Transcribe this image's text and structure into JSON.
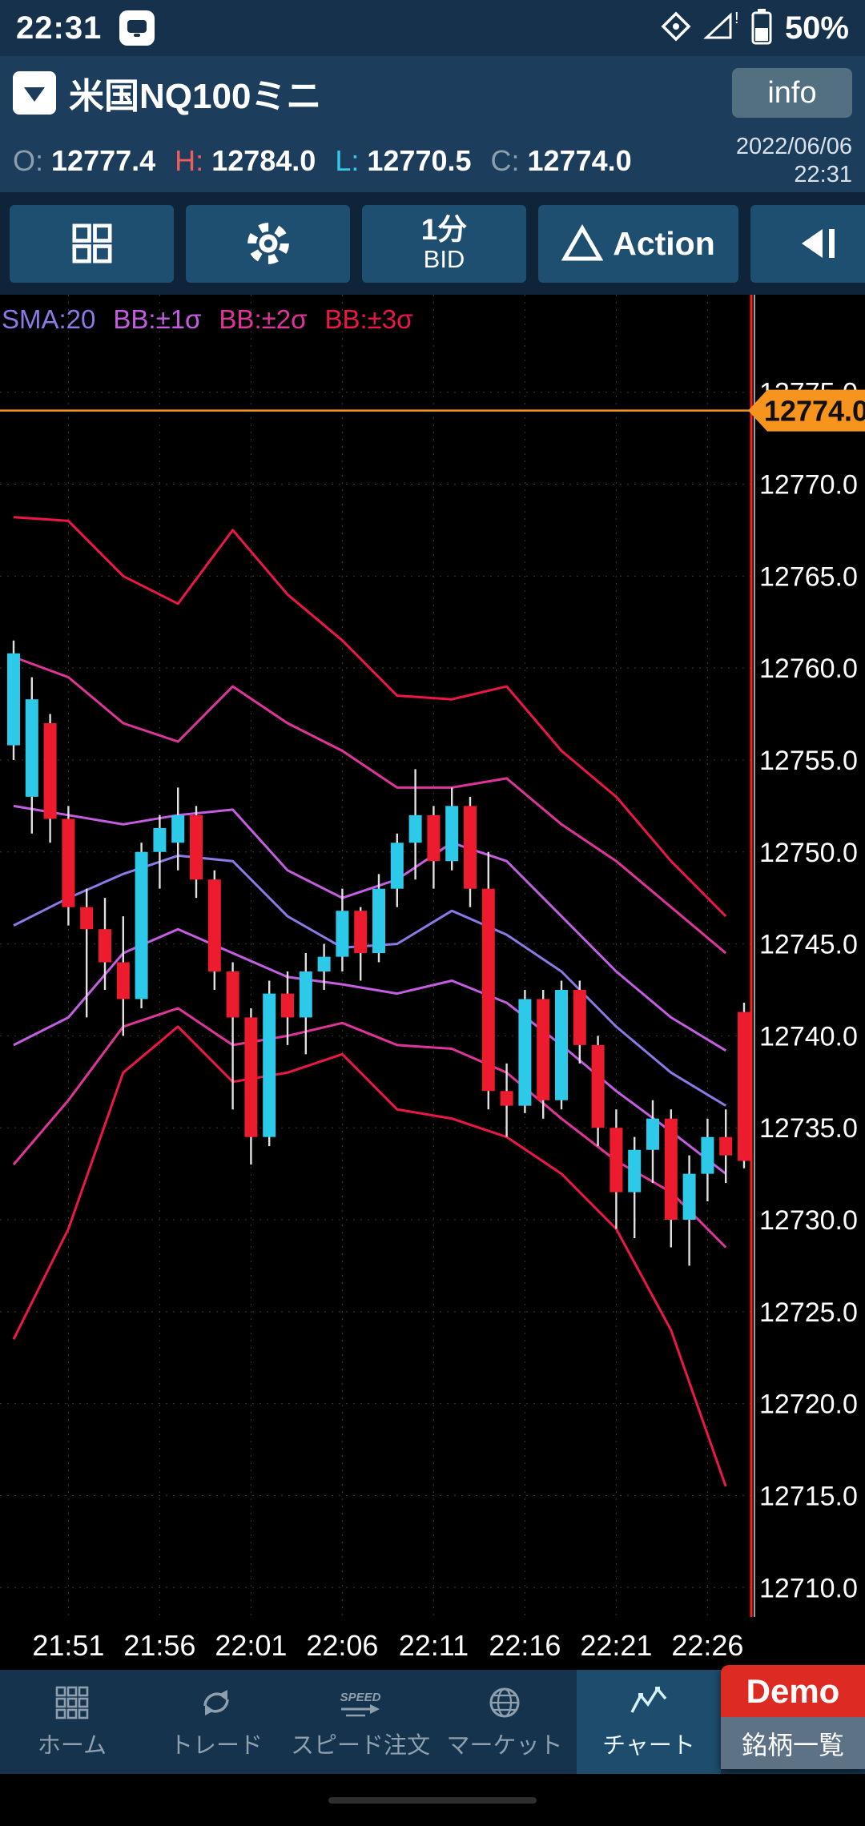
{
  "status_bar": {
    "time": "22:31",
    "battery": "50%"
  },
  "header": {
    "title": "米国NQ100ミニ",
    "info_label": "info"
  },
  "quote": {
    "o_label": "O:",
    "o": "12777.4",
    "h_label": "H:",
    "h": "12784.0",
    "l_label": "L:",
    "l": "12770.5",
    "c_label": "C:",
    "c": "12774.0",
    "date": "2022/06/06",
    "time": "22:31"
  },
  "toolbar": {
    "timeframe": "1分",
    "price_type": "BID",
    "action_label": "Action"
  },
  "legend": [
    {
      "label": "SMA:20",
      "color": "#8A7AE6"
    },
    {
      "label": "BB:±1σ",
      "color": "#C45DE2"
    },
    {
      "label": "BB:±2σ",
      "color": "#E0349B"
    },
    {
      "label": "BB:±3σ",
      "color": "#EC1747"
    }
  ],
  "colors": {
    "up": "#2CC9E9",
    "down": "#EC1C2E",
    "wick": "#E0E0E0",
    "sma": "#8A7AE6",
    "bb1": "#C45DE2",
    "bb2": "#E0349B",
    "bb3": "#EC1747",
    "price_line": "#F7941D",
    "time_line": "#FF2020",
    "grid": "#383838",
    "axis_text": "#FFFFFF"
  },
  "chart_data": {
    "type": "candlestick",
    "symbol": "米国NQ100ミニ",
    "interval": "1分",
    "price_side": "BID",
    "current_price": 12774.0,
    "y_range": [
      12708.4,
      12780.3
    ],
    "y_ticks": [
      12775,
      12770,
      12765,
      12760,
      12755,
      12750,
      12745,
      12740,
      12735,
      12730,
      12725,
      12720,
      12715,
      12710
    ],
    "x_ticks": [
      {
        "idx": 3,
        "label": "21:51"
      },
      {
        "idx": 8,
        "label": "21:56"
      },
      {
        "idx": 13,
        "label": "22:01"
      },
      {
        "idx": 18,
        "label": "22:06"
      },
      {
        "idx": 23,
        "label": "22:11"
      },
      {
        "idx": 28,
        "label": "22:16"
      },
      {
        "idx": 33,
        "label": "22:21"
      },
      {
        "idx": 38,
        "label": "22:26"
      }
    ],
    "start_time": "21:48",
    "candles": [
      [
        12755.8,
        12761.5,
        12755.0,
        12760.8
      ],
      [
        12753.0,
        12759.5,
        12751.0,
        12758.3
      ],
      [
        12757.0,
        12757.5,
        12750.5,
        12751.8
      ],
      [
        12751.8,
        12752.5,
        12746.0,
        12747.0
      ],
      [
        12747.0,
        12748.0,
        12741.0,
        12745.8
      ],
      [
        12745.8,
        12747.5,
        12742.5,
        12744.0
      ],
      [
        12744.0,
        12746.5,
        12740.0,
        12742.0
      ],
      [
        12742.0,
        12750.5,
        12741.5,
        12750.0
      ],
      [
        12750.0,
        12752.0,
        12748.0,
        12751.3
      ],
      [
        12750.5,
        12753.5,
        12749.0,
        12752.0
      ],
      [
        12752.0,
        12752.5,
        12747.5,
        12748.5
      ],
      [
        12748.5,
        12749.0,
        12742.5,
        12743.5
      ],
      [
        12743.5,
        12744.0,
        12736.0,
        12741.0
      ],
      [
        12741.0,
        12741.5,
        12733.0,
        12734.5
      ],
      [
        12734.5,
        12743.0,
        12734.0,
        12742.3
      ],
      [
        12742.3,
        12743.5,
        12739.5,
        12741.0
      ],
      [
        12741.0,
        12744.5,
        12739.0,
        12743.5
      ],
      [
        12743.5,
        12745.0,
        12742.5,
        12744.3
      ],
      [
        12744.3,
        12748.0,
        12743.5,
        12746.8
      ],
      [
        12746.8,
        12747.0,
        12743.0,
        12744.5
      ],
      [
        12744.5,
        12748.8,
        12744.0,
        12748.0
      ],
      [
        12748.0,
        12751.0,
        12747.0,
        12750.5
      ],
      [
        12750.5,
        12754.5,
        12748.5,
        12752.0
      ],
      [
        12752.0,
        12752.5,
        12748.0,
        12749.5
      ],
      [
        12749.5,
        12753.5,
        12749.0,
        12752.5
      ],
      [
        12752.5,
        12753.0,
        12747.0,
        12748.0
      ],
      [
        12748.0,
        12750.0,
        12736.0,
        12737.0
      ],
      [
        12737.0,
        12738.5,
        12734.5,
        12736.2
      ],
      [
        12736.2,
        12742.5,
        12735.8,
        12742.0
      ],
      [
        12742.0,
        12742.5,
        12735.5,
        12736.5
      ],
      [
        12736.5,
        12743.0,
        12736.0,
        12742.5
      ],
      [
        12742.5,
        12743.0,
        12738.5,
        12739.5
      ],
      [
        12739.5,
        12740.0,
        12734.0,
        12735.0
      ],
      [
        12735.0,
        12736.0,
        12729.5,
        12731.5
      ],
      [
        12731.5,
        12734.5,
        12729.0,
        12733.8
      ],
      [
        12733.8,
        12736.5,
        12732.0,
        12735.5
      ],
      [
        12735.5,
        12736.0,
        12728.5,
        12730.0
      ],
      [
        12730.0,
        12733.5,
        12727.5,
        12732.5
      ],
      [
        12732.5,
        12735.5,
        12731.0,
        12734.5
      ],
      [
        12734.5,
        12736.0,
        12732.0,
        12733.5
      ],
      [
        12741.3,
        12741.8,
        12732.8,
        12733.2
      ]
    ],
    "bands": {
      "idx": [
        0,
        3,
        6,
        9,
        12,
        15,
        18,
        21,
        24,
        27,
        30,
        33,
        36,
        39
      ],
      "bb3_upper": [
        12768.2,
        12768.0,
        12765.0,
        12763.5,
        12767.5,
        12764.0,
        12761.5,
        12758.5,
        12758.3,
        12759.0,
        12755.5,
        12753.0,
        12749.5,
        12746.5
      ],
      "bb2_upper": [
        12760.6,
        12759.5,
        12757.0,
        12756.0,
        12759.0,
        12757.0,
        12755.5,
        12753.5,
        12753.5,
        12754.0,
        12751.5,
        12749.5,
        12747.0,
        12744.5
      ],
      "bb1_upper": [
        12752.5,
        12752.0,
        12751.5,
        12752.0,
        12752.3,
        12749.0,
        12747.5,
        12748.5,
        12750.5,
        12749.5,
        12746.5,
        12743.5,
        12741.0,
        12739.2
      ],
      "sma": [
        12746.0,
        12747.5,
        12748.8,
        12749.8,
        12749.5,
        12746.5,
        12744.8,
        12745.0,
        12746.8,
        12745.5,
        12743.5,
        12740.5,
        12738.0,
        12736.2
      ],
      "bb1_lower": [
        12739.5,
        12741.0,
        12744.5,
        12745.8,
        12744.5,
        12743.2,
        12742.8,
        12742.3,
        12743.0,
        12741.8,
        12739.5,
        12737.0,
        12734.8,
        12732.5
      ],
      "bb2_lower": [
        12733.0,
        12736.5,
        12740.5,
        12741.5,
        12739.5,
        12740.0,
        12740.7,
        12739.5,
        12739.3,
        12738.0,
        12735.5,
        12733.2,
        12731.5,
        12728.5
      ],
      "bb3_lower": [
        12723.5,
        12729.5,
        12738.0,
        12740.5,
        12737.5,
        12738.0,
        12739.0,
        12736.0,
        12735.5,
        12734.5,
        12732.5,
        12729.5,
        12724.0,
        12715.5
      ]
    }
  },
  "nav": {
    "items": [
      {
        "label": "ホーム"
      },
      {
        "label": "トレード"
      },
      {
        "label": "スピード注文"
      },
      {
        "label": "マーケット"
      },
      {
        "label": "チャート"
      }
    ],
    "demo_label": "Demo",
    "list_label": "銘柄一覧"
  }
}
